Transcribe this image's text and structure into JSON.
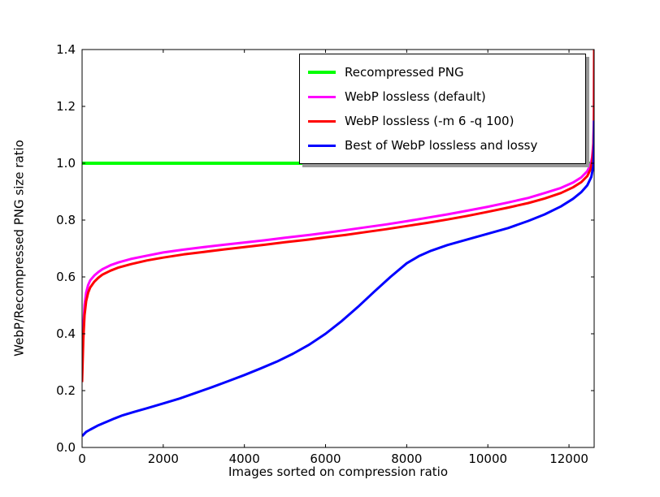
{
  "figure": {
    "background": "#ffffff"
  },
  "chart_data": {
    "type": "line",
    "title": "",
    "xlabel": "Images sorted on compression ratio",
    "ylabel": "WebP/Recompressed PNG size ratio",
    "xlim": [
      0,
      12620
    ],
    "ylim": [
      0.0,
      1.4
    ],
    "xticks": [
      0,
      2000,
      4000,
      6000,
      8000,
      10000,
      12000
    ],
    "yticks": [
      "0.0",
      "0.2",
      "0.4",
      "0.6",
      "0.8",
      "1.0",
      "1.2",
      "1.4"
    ],
    "grid": false,
    "legend_position": "upper right",
    "series": [
      {
        "name": "Recompressed PNG",
        "color": "#00ff00",
        "linewidth": 4,
        "points": [
          [
            0,
            1.0
          ],
          [
            12620,
            1.0
          ]
        ]
      },
      {
        "name": "WebP lossless (default)",
        "color": "#ff00ff",
        "linewidth": 3,
        "points": [
          [
            0,
            0.285
          ],
          [
            30,
            0.42
          ],
          [
            60,
            0.5
          ],
          [
            100,
            0.545
          ],
          [
            150,
            0.572
          ],
          [
            200,
            0.588
          ],
          [
            300,
            0.605
          ],
          [
            400,
            0.617
          ],
          [
            500,
            0.627
          ],
          [
            700,
            0.641
          ],
          [
            900,
            0.651
          ],
          [
            1200,
            0.663
          ],
          [
            1600,
            0.675
          ],
          [
            2000,
            0.686
          ],
          [
            2500,
            0.696
          ],
          [
            3000,
            0.705
          ],
          [
            3500,
            0.713
          ],
          [
            4000,
            0.721
          ],
          [
            4500,
            0.729
          ],
          [
            5000,
            0.738
          ],
          [
            5500,
            0.746
          ],
          [
            6000,
            0.755
          ],
          [
            6500,
            0.765
          ],
          [
            7000,
            0.775
          ],
          [
            7500,
            0.785
          ],
          [
            8000,
            0.796
          ],
          [
            8500,
            0.808
          ],
          [
            9000,
            0.82
          ],
          [
            9500,
            0.833
          ],
          [
            10000,
            0.847
          ],
          [
            10500,
            0.862
          ],
          [
            11000,
            0.878
          ],
          [
            11400,
            0.895
          ],
          [
            11800,
            0.913
          ],
          [
            12100,
            0.932
          ],
          [
            12300,
            0.95
          ],
          [
            12450,
            0.972
          ],
          [
            12530,
            0.995
          ],
          [
            12570,
            1.02
          ],
          [
            12600,
            1.07
          ],
          [
            12615,
            1.18
          ],
          [
            12620,
            1.4
          ]
        ]
      },
      {
        "name": "WebP lossless (-m 6 -q 100)",
        "color": "#ff0000",
        "linewidth": 3,
        "points": [
          [
            0,
            0.23
          ],
          [
            30,
            0.38
          ],
          [
            60,
            0.465
          ],
          [
            100,
            0.515
          ],
          [
            150,
            0.545
          ],
          [
            200,
            0.563
          ],
          [
            300,
            0.583
          ],
          [
            400,
            0.597
          ],
          [
            500,
            0.608
          ],
          [
            700,
            0.622
          ],
          [
            900,
            0.633
          ],
          [
            1200,
            0.645
          ],
          [
            1600,
            0.658
          ],
          [
            2000,
            0.668
          ],
          [
            2500,
            0.679
          ],
          [
            3000,
            0.688
          ],
          [
            3500,
            0.697
          ],
          [
            4000,
            0.705
          ],
          [
            4500,
            0.713
          ],
          [
            5000,
            0.722
          ],
          [
            5500,
            0.73
          ],
          [
            6000,
            0.739
          ],
          [
            6500,
            0.748
          ],
          [
            7000,
            0.758
          ],
          [
            7500,
            0.768
          ],
          [
            8000,
            0.779
          ],
          [
            8500,
            0.79
          ],
          [
            9000,
            0.802
          ],
          [
            9500,
            0.815
          ],
          [
            10000,
            0.829
          ],
          [
            10500,
            0.844
          ],
          [
            11000,
            0.86
          ],
          [
            11400,
            0.876
          ],
          [
            11800,
            0.895
          ],
          [
            12100,
            0.915
          ],
          [
            12300,
            0.933
          ],
          [
            12450,
            0.955
          ],
          [
            12530,
            0.978
          ],
          [
            12570,
            1.005
          ],
          [
            12600,
            1.05
          ],
          [
            12615,
            1.15
          ],
          [
            12620,
            1.4
          ]
        ]
      },
      {
        "name": "Best of WebP lossless and lossy",
        "color": "#0000ff",
        "linewidth": 3,
        "points": [
          [
            0,
            0.04
          ],
          [
            100,
            0.055
          ],
          [
            200,
            0.063
          ],
          [
            400,
            0.078
          ],
          [
            600,
            0.09
          ],
          [
            800,
            0.102
          ],
          [
            1000,
            0.113
          ],
          [
            1300,
            0.126
          ],
          [
            1600,
            0.138
          ],
          [
            2000,
            0.155
          ],
          [
            2400,
            0.172
          ],
          [
            2800,
            0.192
          ],
          [
            3200,
            0.212
          ],
          [
            3600,
            0.233
          ],
          [
            4000,
            0.255
          ],
          [
            4400,
            0.278
          ],
          [
            4800,
            0.302
          ],
          [
            5200,
            0.33
          ],
          [
            5600,
            0.362
          ],
          [
            6000,
            0.4
          ],
          [
            6400,
            0.445
          ],
          [
            6800,
            0.495
          ],
          [
            7200,
            0.548
          ],
          [
            7600,
            0.6
          ],
          [
            8000,
            0.648
          ],
          [
            8300,
            0.673
          ],
          [
            8600,
            0.692
          ],
          [
            9000,
            0.712
          ],
          [
            9500,
            0.732
          ],
          [
            10000,
            0.752
          ],
          [
            10500,
            0.772
          ],
          [
            11000,
            0.797
          ],
          [
            11400,
            0.82
          ],
          [
            11800,
            0.848
          ],
          [
            12100,
            0.875
          ],
          [
            12300,
            0.898
          ],
          [
            12450,
            0.922
          ],
          [
            12550,
            0.952
          ],
          [
            12600,
            0.99
          ],
          [
            12615,
            1.06
          ],
          [
            12620,
            1.15
          ]
        ]
      }
    ]
  }
}
